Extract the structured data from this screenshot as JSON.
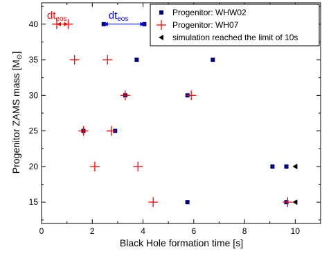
{
  "chart_data": {
    "type": "scatter",
    "title": "",
    "xlabel": "Black Hole formation time [s]",
    "ylabel_main": "Progenitor ZAMS mass [M",
    "ylabel_sub": "⊙",
    "ylabel_close": "]",
    "xlim": [
      0,
      11
    ],
    "ylim": [
      12,
      43
    ],
    "x_ticks": [
      0,
      2,
      4,
      6,
      8,
      10
    ],
    "y_ticks": [
      15,
      20,
      25,
      30,
      35,
      40
    ],
    "grid": false,
    "legend_position": "top-right",
    "series": [
      {
        "name": "Progenitor: WHW02",
        "marker": "square",
        "color": "#00007a",
        "points": [
          {
            "x": 2.45,
            "y": 40
          },
          {
            "x": 4.05,
            "y": 40
          },
          {
            "x": 3.75,
            "y": 35
          },
          {
            "x": 6.75,
            "y": 35
          },
          {
            "x": 3.3,
            "y": 30
          },
          {
            "x": 5.75,
            "y": 30
          },
          {
            "x": 1.65,
            "y": 25
          },
          {
            "x": 2.9,
            "y": 25
          },
          {
            "x": 9.1,
            "y": 20
          },
          {
            "x": 9.65,
            "y": 20
          },
          {
            "x": 5.75,
            "y": 15
          },
          {
            "x": 9.65,
            "y": 15
          }
        ]
      },
      {
        "name": "Progenitor: WH07",
        "marker": "plus",
        "color": "#ff0000",
        "points": [
          {
            "x": 0.6,
            "y": 40
          },
          {
            "x": 1.05,
            "y": 40
          },
          {
            "x": 1.3,
            "y": 35
          },
          {
            "x": 2.6,
            "y": 35
          },
          {
            "x": 3.3,
            "y": 30
          },
          {
            "x": 5.9,
            "y": 30
          },
          {
            "x": 1.65,
            "y": 25
          },
          {
            "x": 2.75,
            "y": 25
          },
          {
            "x": 2.1,
            "y": 20
          },
          {
            "x": 3.8,
            "y": 20
          },
          {
            "x": 4.4,
            "y": 15
          },
          {
            "x": 9.7,
            "y": 15
          }
        ]
      },
      {
        "name": "simulation reached the limit of 10s",
        "marker": "triangle-left",
        "color": "#000000",
        "points": [
          {
            "x": 10,
            "y": 20
          },
          {
            "x": 10,
            "y": 15
          }
        ]
      }
    ],
    "annotations": [
      {
        "main": "dt",
        "sub": "eos",
        "color": "#ff0000",
        "x_from": 0.6,
        "x_to": 1.05,
        "y": 40
      },
      {
        "main": "dt",
        "sub": "eos",
        "color": "#0000ff",
        "x_from": 2.45,
        "x_to": 4.05,
        "y": 40
      }
    ]
  }
}
